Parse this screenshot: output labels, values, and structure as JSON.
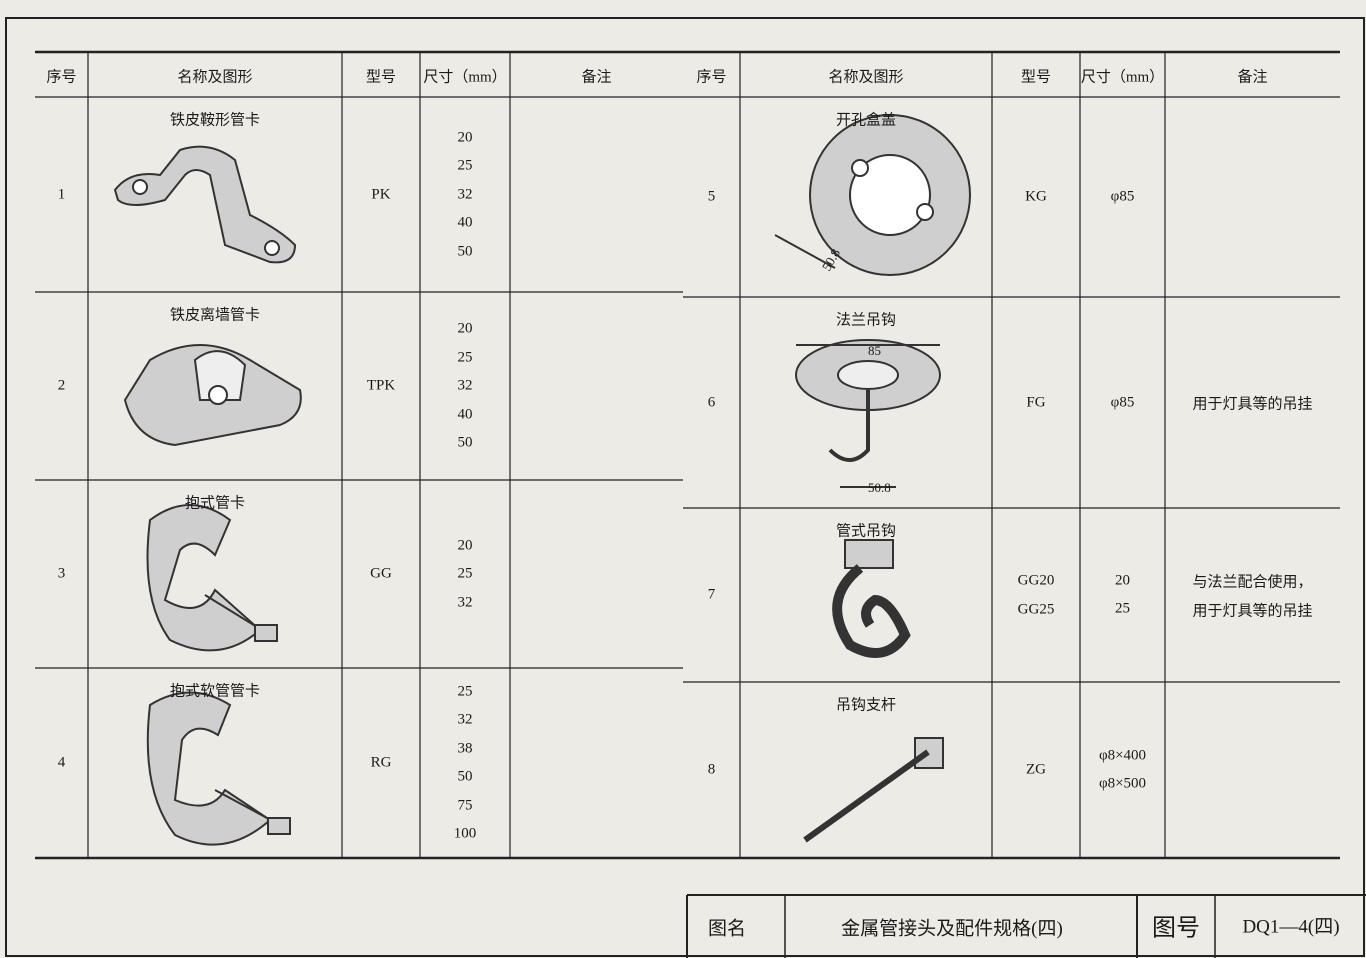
{
  "left": {
    "headers": [
      "序号",
      "名称及图形",
      "型号",
      "尺寸（mm）",
      "备注"
    ],
    "rows": [
      {
        "no": "1",
        "name": "铁皮鞍形管卡",
        "model": [
          "PK"
        ],
        "sizes": [
          "20",
          "25",
          "32",
          "40",
          "50"
        ],
        "remark": []
      },
      {
        "no": "2",
        "name": "铁皮离墙管卡",
        "model": [
          "TPK"
        ],
        "sizes": [
          "20",
          "25",
          "32",
          "40",
          "50"
        ],
        "remark": []
      },
      {
        "no": "3",
        "name": "抱式管卡",
        "model": [
          "GG"
        ],
        "sizes": [
          "20",
          "25",
          "32"
        ],
        "remark": []
      },
      {
        "no": "4",
        "name": "抱式软管管卡",
        "model": [
          "RG"
        ],
        "sizes": [
          "25",
          "32",
          "38",
          "50",
          "75",
          "100"
        ],
        "remark": []
      }
    ]
  },
  "right": {
    "headers": [
      "序号",
      "名称及图形",
      "型号",
      "尺寸（mm）",
      "备注"
    ],
    "rows": [
      {
        "no": "5",
        "name": "开孔盒盖",
        "model": [
          "KG"
        ],
        "sizes": [
          "φ85"
        ],
        "remark": [],
        "dims": [
          "50.8"
        ]
      },
      {
        "no": "6",
        "name": "法兰吊钩",
        "model": [
          "FG"
        ],
        "sizes": [
          "φ85"
        ],
        "remark": [
          "用于灯具等的吊挂"
        ],
        "dims": [
          "85",
          "50.8"
        ]
      },
      {
        "no": "7",
        "name": "管式吊钩",
        "model": [
          "GG20",
          "GG25"
        ],
        "sizes": [
          "20",
          "25"
        ],
        "remark": [
          "与法兰配合使用，",
          "用于灯具等的吊挂"
        ]
      },
      {
        "no": "8",
        "name": "吊钩支杆",
        "model": [
          "ZG"
        ],
        "sizes": [
          "φ8×400",
          "φ8×500"
        ],
        "remark": []
      }
    ]
  },
  "title_block": {
    "name_label": "图名",
    "name": "金属管接头及配件规格(四)",
    "number_label": "图号",
    "number": "DQ1—4(四)"
  }
}
